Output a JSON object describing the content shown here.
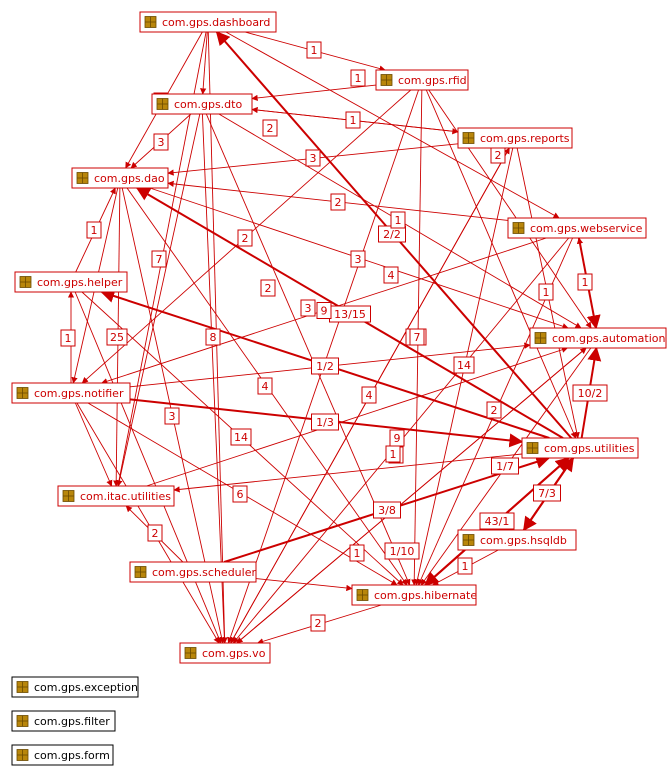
{
  "colors": {
    "edge": "#cc0000",
    "pkg_icon": "#b8860b",
    "legend_border": "#000000"
  },
  "icon": "package-icon",
  "nodes": [
    {
      "id": "dashboard",
      "label": "com.gps.dashboard"
    },
    {
      "id": "rfid",
      "label": "com.gps.rfid"
    },
    {
      "id": "dto",
      "label": "com.gps.dto"
    },
    {
      "id": "reports",
      "label": "com.gps.reports"
    },
    {
      "id": "dao",
      "label": "com.gps.dao"
    },
    {
      "id": "webservice",
      "label": "com.gps.webservice"
    },
    {
      "id": "helper",
      "label": "com.gps.helper"
    },
    {
      "id": "automation",
      "label": "com.gps.automation"
    },
    {
      "id": "notifier",
      "label": "com.gps.notifier"
    },
    {
      "id": "utilities",
      "label": "com.gps.utilities"
    },
    {
      "id": "itac",
      "label": "com.itac.utilities"
    },
    {
      "id": "hsqldb",
      "label": "com.gps.hsqldb"
    },
    {
      "id": "scheduler",
      "label": "com.gps.scheduler"
    },
    {
      "id": "hibernate",
      "label": "com.gps.hibernate"
    },
    {
      "id": "vo",
      "label": "com.gps.vo"
    }
  ],
  "legend": [
    {
      "label": "com.gps.exception"
    },
    {
      "label": "com.gps.filter"
    },
    {
      "label": "com.gps.form"
    }
  ],
  "edges": [
    {
      "from": "dashboard",
      "to": "rfid",
      "label": "1"
    },
    {
      "from": "rfid",
      "to": "dto",
      "label": "1"
    },
    {
      "from": "dashboard",
      "to": "dto",
      "label": "3"
    },
    {
      "from": "reports",
      "to": "dto",
      "label": "1"
    },
    {
      "from": "dto",
      "to": "reports",
      "label": "2"
    },
    {
      "from": "dto",
      "to": "dao",
      "label": "3"
    },
    {
      "from": "reports",
      "to": "dao",
      "label": "3"
    },
    {
      "from": "webservice",
      "to": "dao",
      "label": "2"
    },
    {
      "from": "dashboard",
      "to": "dao",
      "label": ""
    },
    {
      "from": "helper",
      "to": "dao",
      "label": "1"
    },
    {
      "from": "notifier",
      "to": "helper",
      "label": "1"
    },
    {
      "from": "utilities",
      "to": "dashboard",
      "label": "2/2"
    },
    {
      "from": "utilities",
      "to": "dao",
      "label": "13/15"
    },
    {
      "from": "utilities",
      "to": "helper",
      "label": "1/2"
    },
    {
      "from": "notifier",
      "to": "utilities",
      "label": "1/3"
    },
    {
      "from": "hsqldb",
      "to": "utilities",
      "label": "43/1"
    },
    {
      "from": "utilities",
      "to": "hsqldb",
      "label": "7/3"
    },
    {
      "from": "utilities",
      "to": "automation",
      "label": "4/2"
    },
    {
      "from": "automation",
      "to": "webservice",
      "label": "1"
    },
    {
      "from": "webservice",
      "to": "automation",
      "label": "10/2"
    },
    {
      "from": "hibernate",
      "to": "utilities",
      "label": "1/7"
    },
    {
      "from": "scheduler",
      "to": "utilities",
      "label": "3/8"
    },
    {
      "from": "utilities",
      "to": "hibernate",
      "label": "1/10"
    },
    {
      "from": "hsqldb",
      "to": "hibernate",
      "label": "1"
    },
    {
      "from": "scheduler",
      "to": "hibernate",
      "label": "1"
    },
    {
      "from": "hibernate",
      "to": "vo",
      "label": "2"
    },
    {
      "from": "scheduler",
      "to": "itac",
      "label": "2"
    },
    {
      "from": "dao",
      "to": "itac",
      "label": "25"
    },
    {
      "from": "utilities",
      "to": "itac",
      "label": "4"
    },
    {
      "from": "dao",
      "to": "vo",
      "label": "59"
    },
    {
      "from": "dashboard",
      "to": "vo",
      "label": "14"
    },
    {
      "from": "helper",
      "to": "hibernate",
      "label": "6"
    },
    {
      "from": "notifier",
      "to": "hibernate",
      "label": "8"
    },
    {
      "from": "dto",
      "to": "vo",
      "label": "7"
    },
    {
      "from": "rfid",
      "to": "hibernate",
      "label": "14"
    },
    {
      "from": "reports",
      "to": "hibernate",
      "label": "4"
    },
    {
      "from": "dao",
      "to": "automation",
      "label": "3"
    },
    {
      "from": "dto",
      "to": "automation",
      "label": "1"
    },
    {
      "from": "rfid",
      "to": "utilities",
      "label": "1"
    },
    {
      "from": "reports",
      "to": "utilities",
      "label": "7"
    },
    {
      "from": "dashboard",
      "to": "itac",
      "label": "2"
    },
    {
      "from": "rfid",
      "to": "vo",
      "label": "2"
    },
    {
      "from": "reports",
      "to": "vo",
      "label": "2"
    },
    {
      "from": "webservice",
      "to": "vo",
      "label": "4"
    },
    {
      "from": "automation",
      "to": "vo",
      "label": "3"
    },
    {
      "from": "dto",
      "to": "hibernate",
      "label": "3"
    },
    {
      "from": "dao",
      "to": "hibernate",
      "label": "9"
    },
    {
      "from": "webservice",
      "to": "hibernate",
      "label": "1"
    },
    {
      "from": "automation",
      "to": "hibernate",
      "label": "1"
    },
    {
      "from": "notifier",
      "to": "automation",
      "label": "1"
    },
    {
      "from": "vo",
      "to": "automation",
      "label": "2"
    },
    {
      "from": "webservice",
      "to": "notifier",
      "label": "9"
    },
    {
      "from": "dto",
      "to": "itac",
      "label": ""
    },
    {
      "from": "rfid",
      "to": "notifier",
      "label": ""
    },
    {
      "from": "notifier",
      "to": "vo",
      "label": ""
    },
    {
      "from": "dashboard",
      "to": "webservice",
      "label": ""
    },
    {
      "from": "rfid",
      "to": "automation",
      "label": ""
    },
    {
      "from": "itac",
      "to": "automation",
      "label": ""
    },
    {
      "from": "dao",
      "to": "notifier",
      "label": ""
    },
    {
      "from": "vo",
      "to": "reports",
      "label": ""
    },
    {
      "from": "notifier",
      "to": "itac",
      "label": ""
    },
    {
      "from": "helper",
      "to": "vo",
      "label": ""
    }
  ]
}
